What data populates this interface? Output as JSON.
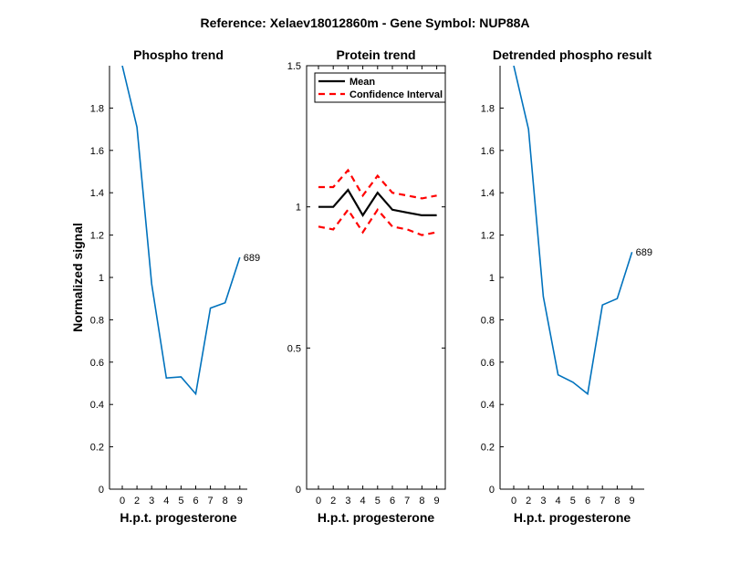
{
  "figure_title": "Reference:  Xelaev18012860m - Gene Symbol:  NUP88A",
  "chart_data": [
    {
      "type": "line",
      "title": "Phospho trend",
      "xlabel": "H.p.t. progesterone",
      "ylabel": "Normalized signal",
      "x_tick_labels": [
        "0",
        "2",
        "3",
        "4",
        "5",
        "6",
        "7",
        "8",
        "9"
      ],
      "y_ticks": [
        0,
        0.2,
        0.4,
        0.6,
        0.8,
        1,
        1.2,
        1.4,
        1.6,
        1.8
      ],
      "y_tick_labels": [
        "0",
        "0.2",
        "0.4",
        "0.6",
        "0.8",
        "1",
        "1.2",
        "1.4",
        "1.6",
        "1.8"
      ],
      "ylim": [
        0,
        2.0
      ],
      "series": [
        {
          "name": "689",
          "color": "#0072BD",
          "values": [
            2.0,
            1.71,
            0.97,
            0.525,
            0.53,
            0.45,
            0.855,
            0.88,
            1.095
          ]
        }
      ],
      "end_label": "689"
    },
    {
      "type": "line",
      "title": "Protein trend",
      "xlabel": "H.p.t. progesterone",
      "ylabel": "",
      "x_tick_labels": [
        "0",
        "2",
        "3",
        "4",
        "5",
        "6",
        "7",
        "8",
        "9"
      ],
      "y_ticks": [
        0,
        0.5,
        1,
        1.5
      ],
      "y_tick_labels": [
        "0",
        "0.5",
        "1",
        "1.5"
      ],
      "ylim": [
        0,
        1.5
      ],
      "series": [
        {
          "name": "Mean",
          "color": "#000000",
          "dashed": false,
          "values": [
            1.0,
            1.0,
            1.06,
            0.97,
            1.05,
            0.99,
            0.98,
            0.97,
            0.97
          ]
        },
        {
          "name": "Confidence Interval",
          "color": "#FF0000",
          "dashed": true,
          "values": [
            1.07,
            1.07,
            1.13,
            1.04,
            1.11,
            1.05,
            1.04,
            1.03,
            1.04
          ]
        },
        {
          "name": "Confidence Interval lower",
          "color": "#FF0000",
          "dashed": true,
          "values": [
            0.93,
            0.92,
            0.99,
            0.91,
            0.99,
            0.93,
            0.92,
            0.9,
            0.91
          ]
        }
      ],
      "legend": [
        "Mean",
        "Confidence Interval"
      ],
      "legend_position": "top-left"
    },
    {
      "type": "line",
      "title": "Detrended phospho result",
      "xlabel": "H.p.t. progesterone",
      "ylabel": "",
      "x_tick_labels": [
        "0",
        "2",
        "3",
        "4",
        "5",
        "6",
        "7",
        "8",
        "9"
      ],
      "y_ticks": [
        0,
        0.2,
        0.4,
        0.6,
        0.8,
        1,
        1.2,
        1.4,
        1.6,
        1.8
      ],
      "y_tick_labels": [
        "0",
        "0.2",
        "0.4",
        "0.6",
        "0.8",
        "1",
        "1.2",
        "1.4",
        "1.6",
        "1.8"
      ],
      "ylim": [
        0,
        2.0
      ],
      "series": [
        {
          "name": "689",
          "color": "#0072BD",
          "values": [
            2.0,
            1.7,
            0.91,
            0.54,
            0.505,
            0.45,
            0.87,
            0.9,
            1.12
          ]
        }
      ],
      "end_label": "689"
    }
  ]
}
